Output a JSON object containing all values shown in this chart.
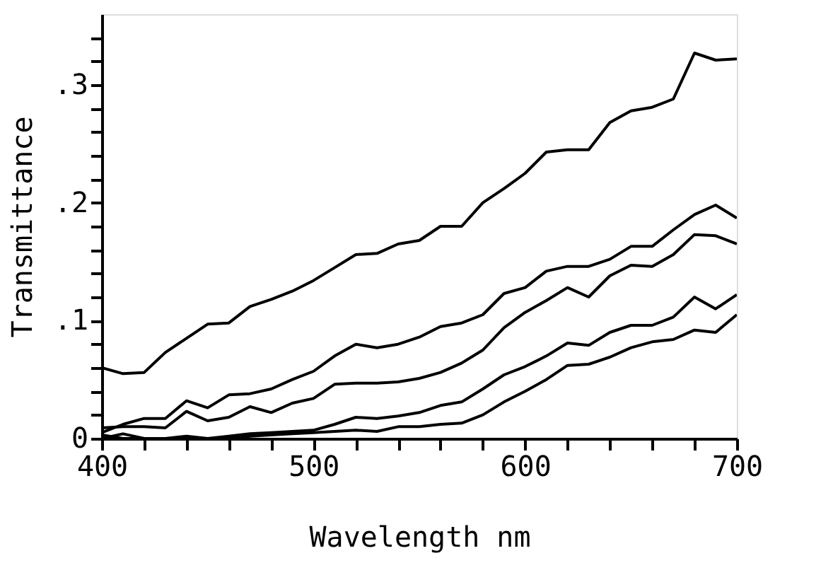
{
  "chart_data": {
    "type": "line",
    "xlabel": "Wavelength nm",
    "ylabel": "Transmittance",
    "x": [
      400,
      410,
      420,
      430,
      440,
      450,
      460,
      470,
      480,
      490,
      500,
      510,
      520,
      530,
      540,
      550,
      560,
      570,
      580,
      590,
      600,
      610,
      620,
      630,
      640,
      650,
      660,
      670,
      680,
      690,
      700
    ],
    "series": [
      {
        "color": "#000000",
        "values": [
          0.06,
          0.055,
          0.056,
          0.073,
          0.085,
          0.097,
          0.098,
          0.112,
          0.118,
          0.125,
          0.134,
          0.145,
          0.156,
          0.157,
          0.165,
          0.168,
          0.18,
          0.18,
          0.2,
          0.212,
          0.225,
          0.243,
          0.245,
          0.245,
          0.268,
          0.278,
          0.281,
          0.288,
          0.327,
          0.321,
          0.322
        ]
      },
      {
        "color": "#000000",
        "values": [
          0.005,
          0.012,
          0.017,
          0.017,
          0.032,
          0.026,
          0.037,
          0.038,
          0.042,
          0.05,
          0.057,
          0.07,
          0.08,
          0.077,
          0.08,
          0.086,
          0.095,
          0.098,
          0.105,
          0.123,
          0.128,
          0.142,
          0.146,
          0.146,
          0.152,
          0.163,
          0.163,
          0.177,
          0.19,
          0.198,
          0.187
        ]
      },
      {
        "color": "#000000",
        "values": [
          0.009,
          0.01,
          0.01,
          0.009,
          0.023,
          0.015,
          0.018,
          0.027,
          0.022,
          0.03,
          0.034,
          0.046,
          0.047,
          0.047,
          0.048,
          0.051,
          0.056,
          0.064,
          0.075,
          0.094,
          0.107,
          0.117,
          0.128,
          0.12,
          0.138,
          0.147,
          0.146,
          0.156,
          0.173,
          0.172,
          0.165
        ]
      },
      {
        "color": "#000000",
        "values": [
          0.003,
          0.0,
          0.0,
          0.0,
          0.0,
          0.0,
          0.002,
          0.004,
          0.005,
          0.006,
          0.007,
          0.012,
          0.018,
          0.017,
          0.019,
          0.022,
          0.028,
          0.031,
          0.042,
          0.054,
          0.061,
          0.07,
          0.081,
          0.079,
          0.09,
          0.096,
          0.096,
          0.103,
          0.12,
          0.11,
          0.122
        ]
      },
      {
        "color": "#000000",
        "values": [
          0.0,
          0.004,
          0.0,
          0.0,
          0.002,
          0.0,
          0.0,
          0.002,
          0.003,
          0.004,
          0.005,
          0.006,
          0.007,
          0.006,
          0.01,
          0.01,
          0.012,
          0.013,
          0.02,
          0.031,
          0.04,
          0.05,
          0.062,
          0.063,
          0.069,
          0.077,
          0.082,
          0.084,
          0.092,
          0.09,
          0.105
        ]
      }
    ],
    "xlim": [
      400,
      700
    ],
    "xticks": [
      400,
      {
        "value": 420,
        "label": null
      },
      {
        "value": 440,
        "label": null
      },
      {
        "value": 460,
        "label": null
      },
      {
        "value": 480,
        "label": null
      },
      500,
      {
        "value": 520,
        "label": null
      },
      {
        "value": 540,
        "label": null
      },
      {
        "value": 560,
        "label": null
      },
      {
        "value": 580,
        "label": null
      },
      600,
      {
        "value": 620,
        "label": null
      },
      {
        "value": 640,
        "label": null
      },
      {
        "value": 660,
        "label": null
      },
      {
        "value": 680,
        "label": null
      },
      700
    ],
    "ylim": [
      0,
      0.36
    ],
    "yticks": [
      0,
      {
        "value": 0.02,
        "label": null
      },
      {
        "value": 0.04,
        "label": null
      },
      {
        "value": 0.06,
        "label": null
      },
      {
        "value": 0.08,
        "label": null
      },
      {
        "value": 0.1,
        "label": ".1"
      },
      {
        "value": 0.12,
        "label": null
      },
      {
        "value": 0.14,
        "label": null
      },
      {
        "value": 0.16,
        "label": null
      },
      {
        "value": 0.18,
        "label": null
      },
      {
        "value": 0.2,
        "label": ".2"
      },
      {
        "value": 0.22,
        "label": null
      },
      {
        "value": 0.24,
        "label": null
      },
      {
        "value": 0.26,
        "label": null
      },
      {
        "value": 0.28,
        "label": null
      },
      {
        "value": 0.3,
        "label": ".3"
      },
      {
        "value": 0.32,
        "label": null
      },
      {
        "value": 0.34,
        "label": null
      }
    ],
    "grid": false,
    "legend": false,
    "marker": "none",
    "line_style": "solid"
  }
}
